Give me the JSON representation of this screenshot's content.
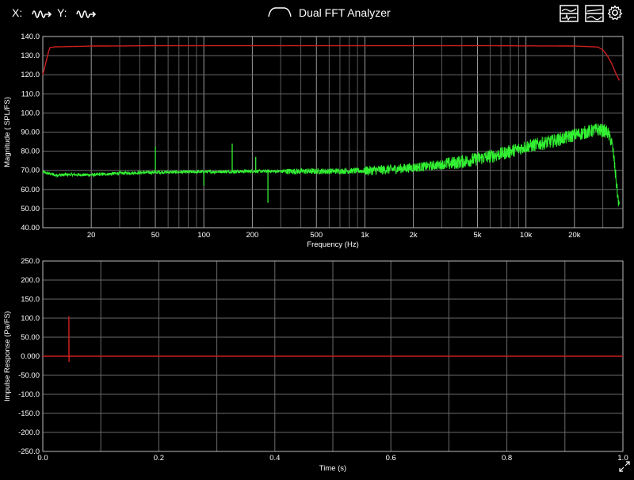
{
  "app": {
    "title": "Dual FFT Analyzer",
    "x_label": "X:",
    "y_label": "Y:",
    "icons": {
      "x_source": "waveform-arrow-icon",
      "y_source": "waveform-arrow-icon",
      "title": "curve-icon",
      "view1": "panel-view-icon",
      "view2": "panel-view-icon",
      "settings": "gear-icon",
      "expand": "expand-arrows-icon"
    }
  },
  "chart_data": [
    {
      "type": "line",
      "xscale": "log",
      "ylabel": "Magnitude ( SPL/FS)",
      "xlabel": "Frequency (Hz)",
      "xlim": [
        10,
        40000
      ],
      "ylim": [
        40,
        140
      ],
      "yticks": [
        "140.0",
        "130.0",
        "120.0",
        "110.0",
        "100.0",
        "90.00",
        "80.00",
        "70.00",
        "60.00",
        "50.00",
        "40.00"
      ],
      "xticks": [
        {
          "value": 20,
          "label": "20"
        },
        {
          "value": 50,
          "label": "50"
        },
        {
          "value": 100,
          "label": "100"
        },
        {
          "value": 200,
          "label": "200"
        },
        {
          "value": 500,
          "label": "500"
        },
        {
          "value": 1000,
          "label": "1k"
        },
        {
          "value": 2000,
          "label": "2k"
        },
        {
          "value": 5000,
          "label": "5k"
        },
        {
          "value": 10000,
          "label": "10k"
        },
        {
          "value": 20000,
          "label": "20k"
        }
      ],
      "grid": true,
      "series": [
        {
          "color": "#cc1f1f",
          "x": [
            10,
            11,
            12,
            20,
            50,
            100,
            500,
            1000,
            5000,
            10000,
            20000,
            28000,
            30000,
            32000,
            34000,
            36000,
            38000
          ],
          "values": [
            120,
            134.2,
            134.6,
            135.0,
            135.2,
            135.2,
            135.2,
            135.2,
            135.2,
            135.1,
            135.0,
            134.5,
            133,
            130,
            126,
            121,
            117
          ]
        },
        {
          "color": "#32f032",
          "x": [
            10,
            12,
            15,
            20,
            30,
            50,
            100,
            200,
            500,
            1000,
            2000,
            5000,
            10000,
            20000,
            28000,
            32000,
            34000,
            35000,
            36000,
            37000,
            38000
          ],
          "values": [
            69,
            67.5,
            67.8,
            67.6,
            68.5,
            69,
            69.2,
            69.5,
            69.5,
            69.8,
            71.5,
            76,
            82.5,
            88.5,
            91.5,
            90,
            85,
            78,
            68,
            58,
            50
          ],
          "spikes": [
            {
              "x": 50,
              "value": 82.5
            },
            {
              "x": 150,
              "value": 84
            },
            {
              "x": 250,
              "value": 53
            },
            {
              "x": 100,
              "value": 62
            },
            {
              "x": 210,
              "value": 77
            }
          ]
        }
      ]
    },
    {
      "type": "line",
      "ylabel": "Impulse Response (Pa/FS)",
      "xlabel": "Time (s)",
      "xlim": [
        0.0,
        1.0
      ],
      "ylim": [
        -250,
        250
      ],
      "yticks": [
        "250.0",
        "200.0",
        "150.0",
        "100.0",
        "50.00",
        "0.000",
        "-50.00",
        "-100.0",
        "-150.0",
        "-200.0",
        "-250.0"
      ],
      "xticks": [
        {
          "value": 0.0,
          "label": "0.0"
        },
        {
          "value": 0.2,
          "label": "0.2"
        },
        {
          "value": 0.4,
          "label": "0.4"
        },
        {
          "value": 0.6,
          "label": "0.6"
        },
        {
          "value": 0.8,
          "label": "0.8"
        },
        {
          "value": 1.0,
          "label": "1.0"
        }
      ],
      "grid": true,
      "series": [
        {
          "color": "#cc1f1f",
          "x": [
            0.0,
            0.0449,
            0.045,
            0.0452,
            0.0455,
            1.0
          ],
          "values": [
            0,
            0,
            105,
            -15,
            0,
            0
          ]
        }
      ]
    }
  ]
}
